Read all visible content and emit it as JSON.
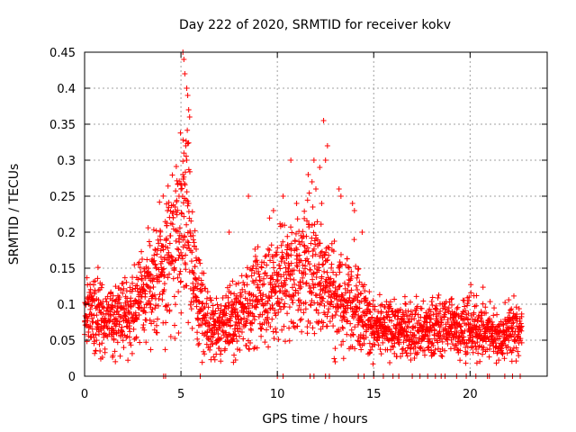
{
  "chart_data": {
    "type": "scatter",
    "title": "Day 222 of 2020, SRMTID for receiver kokv",
    "xlabel": "GPS time / hours",
    "ylabel": "SRMTID / TECUs",
    "xlim": [
      0,
      24
    ],
    "ylim": [
      0,
      0.45
    ],
    "xticks": [
      0,
      5,
      10,
      15,
      20
    ],
    "yticks": [
      0,
      0.05,
      0.1,
      0.15,
      0.2,
      0.25,
      0.3,
      0.35,
      0.4,
      0.45
    ],
    "ytick_labels": [
      "0",
      "0.05",
      "0.1",
      "0.15",
      "0.2",
      "0.25",
      "0.3",
      "0.35",
      "0.4",
      "0.45"
    ],
    "grid": true,
    "marker": "+",
    "color": "#ff0000",
    "series": [
      {
        "name": "SRMTID",
        "profile": [
          [
            0.0,
            0.085
          ],
          [
            0.5,
            0.09
          ],
          [
            1.0,
            0.075
          ],
          [
            1.5,
            0.08
          ],
          [
            2.0,
            0.08
          ],
          [
            2.5,
            0.09
          ],
          [
            3.0,
            0.11
          ],
          [
            3.5,
            0.13
          ],
          [
            4.0,
            0.15
          ],
          [
            4.5,
            0.18
          ],
          [
            5.0,
            0.2
          ],
          [
            5.3,
            0.22
          ],
          [
            5.6,
            0.16
          ],
          [
            6.0,
            0.1
          ],
          [
            6.5,
            0.065
          ],
          [
            7.0,
            0.065
          ],
          [
            7.5,
            0.075
          ],
          [
            8.0,
            0.085
          ],
          [
            8.5,
            0.1
          ],
          [
            9.0,
            0.11
          ],
          [
            9.5,
            0.12
          ],
          [
            10.0,
            0.13
          ],
          [
            10.5,
            0.14
          ],
          [
            11.0,
            0.14
          ],
          [
            11.5,
            0.15
          ],
          [
            12.0,
            0.15
          ],
          [
            12.5,
            0.13
          ],
          [
            13.0,
            0.11
          ],
          [
            13.5,
            0.1
          ],
          [
            14.0,
            0.11
          ],
          [
            14.5,
            0.085
          ],
          [
            15.0,
            0.065
          ],
          [
            16.0,
            0.065
          ],
          [
            17.0,
            0.065
          ],
          [
            18.0,
            0.065
          ],
          [
            19.0,
            0.07
          ],
          [
            20.0,
            0.07
          ],
          [
            21.0,
            0.065
          ],
          [
            21.5,
            0.05
          ],
          [
            22.0,
            0.065
          ],
          [
            22.7,
            0.065
          ]
        ],
        "outliers": [
          [
            5.1,
            0.45
          ],
          [
            5.15,
            0.44
          ],
          [
            5.2,
            0.42
          ],
          [
            5.3,
            0.4
          ],
          [
            5.35,
            0.39
          ],
          [
            5.4,
            0.37
          ],
          [
            5.45,
            0.36
          ],
          [
            5.25,
            0.32
          ],
          [
            5.3,
            0.3
          ],
          [
            5.1,
            0.28
          ],
          [
            5.0,
            0.26
          ],
          [
            4.9,
            0.25
          ],
          [
            5.4,
            0.24
          ],
          [
            4.3,
            0.23
          ],
          [
            4.6,
            0.22
          ],
          [
            12.4,
            0.355
          ],
          [
            12.6,
            0.32
          ],
          [
            12.5,
            0.3
          ],
          [
            11.9,
            0.3
          ],
          [
            10.7,
            0.3
          ],
          [
            12.2,
            0.29
          ],
          [
            11.6,
            0.28
          ],
          [
            11.8,
            0.27
          ],
          [
            12.0,
            0.26
          ],
          [
            13.2,
            0.26
          ],
          [
            10.3,
            0.25
          ],
          [
            8.5,
            0.25
          ],
          [
            11.0,
            0.24
          ],
          [
            12.3,
            0.24
          ],
          [
            13.3,
            0.25
          ],
          [
            13.9,
            0.24
          ],
          [
            14.0,
            0.23
          ],
          [
            9.8,
            0.23
          ],
          [
            7.5,
            0.2
          ],
          [
            14.4,
            0.2
          ],
          [
            13.0,
            0.02
          ]
        ],
        "zeros": [
          4.1,
          4.2,
          6.0,
          10.0,
          10.3,
          11.7,
          11.9,
          12.5,
          12.7,
          14.2,
          14.5,
          15.0,
          15.5,
          16.0,
          16.3,
          17.0,
          17.4,
          17.8,
          18.2,
          18.5,
          18.7,
          19.3,
          19.8,
          20.3,
          20.9,
          21.0,
          21.8,
          22.2,
          22.6
        ]
      }
    ]
  }
}
